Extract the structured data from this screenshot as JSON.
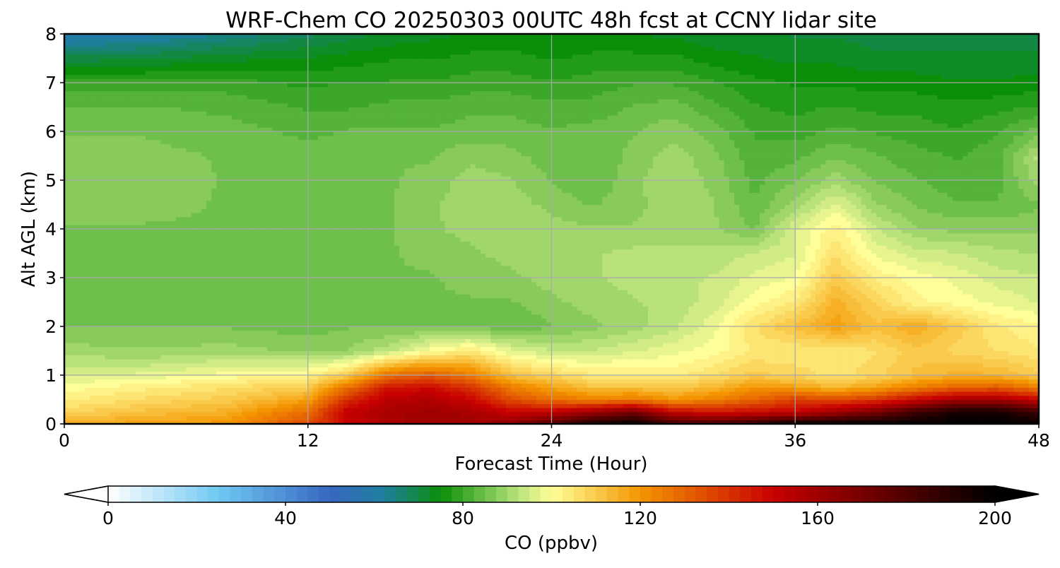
{
  "chart_data": {
    "type": "heatmap",
    "title": "WRF-Chem CO  20250303 00UTC 48h fcst at CCNY lidar site",
    "xlabel": "Forecast Time (Hour)",
    "ylabel": "Alt AGL (km)",
    "xlim": [
      0,
      48
    ],
    "ylim": [
      0,
      8
    ],
    "xticks": [
      0,
      12,
      24,
      36,
      48
    ],
    "yticks": [
      0,
      1,
      2,
      3,
      4,
      5,
      6,
      7,
      8
    ],
    "grid": true,
    "colorbar": {
      "label": "CO  (ppbv)",
      "ticks": [
        0,
        40,
        80,
        120,
        160,
        200
      ],
      "range": [
        0,
        200
      ],
      "extend": "both",
      "orientation": "horizontal",
      "position": "bottom",
      "stops": [
        {
          "value": 0,
          "color": "#ffffff"
        },
        {
          "value": 25,
          "color": "#6fc8f2"
        },
        {
          "value": 50,
          "color": "#3767c0"
        },
        {
          "value": 62,
          "color": "#1f7ea0"
        },
        {
          "value": 75,
          "color": "#0a8f0a"
        },
        {
          "value": 92,
          "color": "#b5e07a"
        },
        {
          "value": 100,
          "color": "#ffff99"
        },
        {
          "value": 120,
          "color": "#f49500"
        },
        {
          "value": 150,
          "color": "#c80000"
        },
        {
          "value": 200,
          "color": "#000000"
        }
      ]
    },
    "x": [
      0,
      4,
      8,
      12,
      14,
      16,
      18,
      20,
      22,
      24,
      26,
      28,
      30,
      32,
      34,
      36,
      38,
      40,
      42,
      44,
      46,
      48
    ],
    "y": [
      0,
      0.25,
      0.5,
      0.75,
      1,
      1.5,
      2,
      2.5,
      3,
      3.5,
      4,
      4.5,
      5,
      5.5,
      6,
      6.5,
      7,
      7.5,
      8
    ],
    "values": [
      [
        115,
        118,
        120,
        135,
        150,
        158,
        160,
        160,
        165,
        180,
        195,
        200,
        185,
        182,
        190,
        200,
        200,
        200,
        200,
        200,
        200,
        200
      ],
      [
        108,
        112,
        115,
        128,
        152,
        158,
        160,
        158,
        150,
        152,
        160,
        170,
        150,
        146,
        148,
        150,
        160,
        170,
        185,
        195,
        195,
        185
      ],
      [
        103,
        107,
        110,
        118,
        142,
        154,
        156,
        150,
        135,
        128,
        124,
        126,
        120,
        124,
        130,
        138,
        135,
        140,
        150,
        160,
        160,
        150
      ],
      [
        100,
        103,
        106,
        110,
        128,
        146,
        148,
        140,
        125,
        118,
        112,
        112,
        110,
        114,
        120,
        118,
        114,
        118,
        125,
        130,
        132,
        125
      ],
      [
        96,
        97,
        100,
        102,
        110,
        128,
        132,
        125,
        112,
        108,
        104,
        104,
        103,
        106,
        110,
        108,
        105,
        108,
        112,
        115,
        114,
        110
      ],
      [
        90,
        89,
        90,
        88,
        89,
        93,
        100,
        104,
        97,
        94,
        94,
        96,
        98,
        100,
        104,
        104,
        104,
        106,
        110,
        108,
        106,
        104
      ],
      [
        86,
        86,
        86,
        85,
        86,
        86,
        86,
        86,
        84,
        86,
        88,
        90,
        93,
        98,
        106,
        112,
        118,
        112,
        116,
        110,
        104,
        102
      ],
      [
        86,
        86,
        86,
        86,
        86,
        86,
        86,
        86,
        86,
        88,
        90,
        91,
        92,
        95,
        100,
        104,
        115,
        108,
        102,
        100,
        98,
        96
      ],
      [
        86,
        86,
        86,
        86,
        86,
        86,
        86,
        87,
        88,
        90,
        91,
        92,
        93,
        94,
        97,
        99,
        110,
        103,
        100,
        98,
        95,
        94
      ],
      [
        86,
        86,
        86,
        86,
        86,
        86,
        87,
        88,
        90,
        91,
        91,
        92,
        92,
        92,
        94,
        96,
        106,
        98,
        95,
        94,
        92,
        91
      ],
      [
        86,
        86,
        86,
        86,
        86,
        86,
        88,
        90,
        91,
        90,
        89,
        89,
        90,
        89,
        86,
        96,
        103,
        94,
        89,
        88,
        88,
        88
      ],
      [
        87,
        87,
        86,
        86,
        86,
        86,
        88,
        91,
        90,
        88,
        86,
        88,
        90,
        89,
        84,
        90,
        97,
        89,
        86,
        84,
        84,
        86
      ],
      [
        88,
        88,
        86,
        86,
        86,
        86,
        87,
        90,
        89,
        86,
        84,
        88,
        91,
        88,
        83,
        86,
        90,
        86,
        84,
        82,
        83,
        90
      ],
      [
        87,
        87,
        86,
        85,
        86,
        86,
        86,
        88,
        87,
        85,
        84,
        87,
        90,
        87,
        82,
        83,
        86,
        84,
        82,
        81,
        83,
        92
      ],
      [
        86,
        86,
        85,
        83,
        84,
        84,
        84,
        85,
        85,
        84,
        85,
        86,
        88,
        85,
        81,
        80,
        82,
        81,
        80,
        79,
        81,
        85
      ],
      [
        84,
        84,
        83,
        81,
        81,
        82,
        82,
        83,
        83,
        82,
        82,
        84,
        85,
        82,
        79,
        78,
        79,
        78,
        78,
        77,
        78,
        79
      ],
      [
        80,
        80,
        80,
        78,
        79,
        79,
        79,
        80,
        80,
        79,
        80,
        81,
        81,
        79,
        77,
        76,
        76,
        75,
        75,
        74,
        74,
        75
      ],
      [
        70,
        71,
        73,
        74,
        75,
        76,
        76,
        77,
        77,
        76,
        77,
        77,
        77,
        75,
        74,
        73,
        73,
        72,
        72,
        72,
        72,
        72
      ],
      [
        58,
        60,
        64,
        68,
        70,
        72,
        73,
        74,
        75,
        74,
        74,
        74,
        73,
        72,
        72,
        71,
        71,
        70,
        70,
        70,
        70,
        70
      ]
    ]
  }
}
